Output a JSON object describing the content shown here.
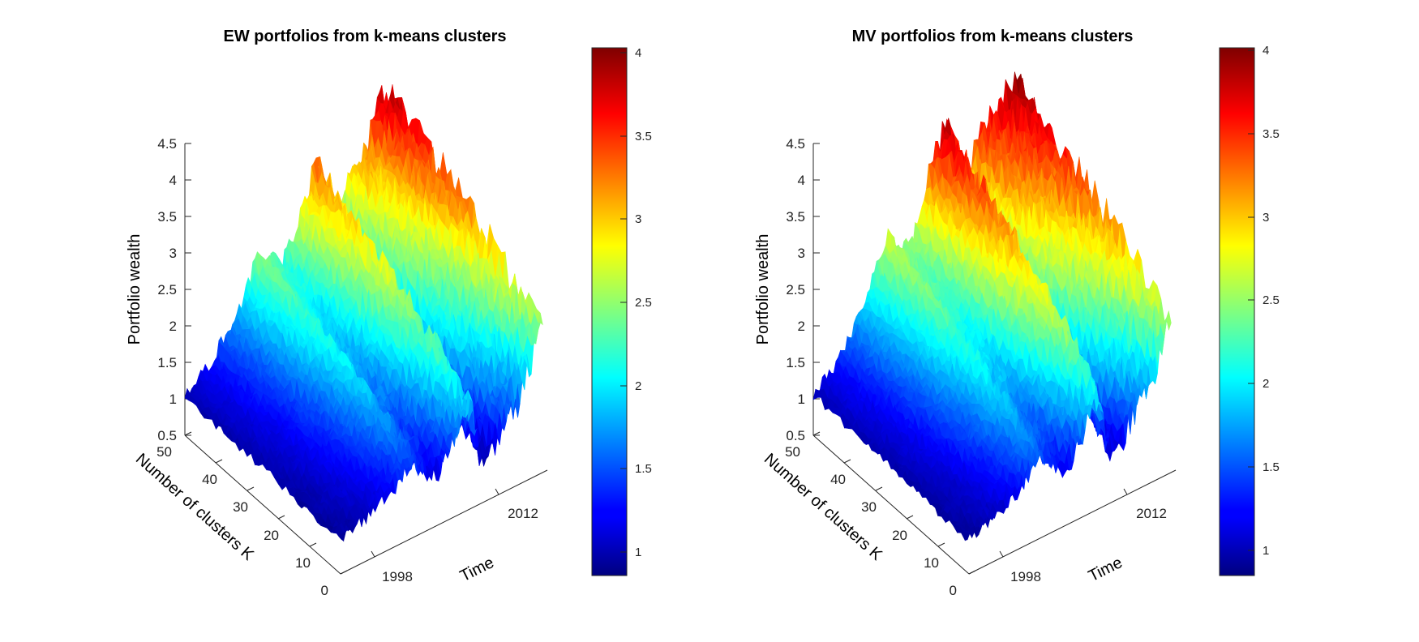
{
  "colors": {
    "colormap": "jet",
    "axis": "#262626",
    "background": "#ffffff"
  },
  "chart_data": [
    {
      "type": "surface",
      "title": "EW portfolios from k-means clusters",
      "xlabel": "Time",
      "ylabel": "Number of clusters K",
      "zlabel": "Portfolio wealth",
      "x_ticks": [
        "1998",
        "2012"
      ],
      "y_ticks": [
        "0",
        "10",
        "20",
        "30",
        "40",
        "50"
      ],
      "z_ticks": [
        "0.5",
        "1",
        "1.5",
        "2",
        "2.5",
        "3",
        "3.5",
        "4",
        "4.5"
      ],
      "xlim": [
        1991,
        2016
      ],
      "ylim": [
        0,
        50
      ],
      "zlim": [
        0.5,
        4.5
      ],
      "clim": [
        0.88,
        4.05
      ],
      "colorbar_ticks": [
        "1",
        "1.5",
        "2",
        "2.5",
        "3",
        "3.5",
        "4"
      ],
      "surface_profile": {
        "x": [
          1991,
          1994,
          1997,
          2000,
          2001,
          2003,
          2005,
          2007,
          2008,
          2009,
          2011,
          2013,
          2015,
          2016
        ],
        "z_max": [
          1.05,
          1.3,
          1.75,
          2.5,
          2.3,
          2.2,
          2.75,
          3.35,
          2.6,
          2.4,
          3.0,
          3.3,
          3.8,
          3.9
        ],
        "z_min": [
          0.95,
          1.05,
          1.2,
          1.5,
          1.3,
          1.15,
          1.45,
          1.9,
          1.1,
          0.95,
          1.3,
          1.6,
          2.2,
          2.4
        ]
      }
    },
    {
      "type": "surface",
      "title": "MV portfolios from k-means clusters",
      "xlabel": "Time",
      "ylabel": "Number of clusters K",
      "zlabel": "Portfolio wealth",
      "x_ticks": [
        "1998",
        "2012"
      ],
      "y_ticks": [
        "0",
        "10",
        "20",
        "30",
        "40",
        "50"
      ],
      "z_ticks": [
        "0.5",
        "1",
        "1.5",
        "2",
        "2.5",
        "3",
        "3.5",
        "4",
        "4.5"
      ],
      "xlim": [
        1991,
        2016
      ],
      "ylim": [
        0,
        50
      ],
      "zlim": [
        0.5,
        4.5
      ],
      "clim": [
        0.88,
        4.05
      ],
      "colorbar_ticks": [
        "1",
        "1.5",
        "2",
        "2.5",
        "3",
        "3.5",
        "4"
      ],
      "surface_profile": {
        "x": [
          1991,
          1994,
          1997,
          2000,
          2001,
          2003,
          2005,
          2007,
          2008,
          2009,
          2011,
          2013,
          2015,
          2016
        ],
        "z_max": [
          1.05,
          1.35,
          1.9,
          2.7,
          2.5,
          2.5,
          3.3,
          3.9,
          3.0,
          2.8,
          3.5,
          3.7,
          3.9,
          4.0
        ],
        "z_min": [
          0.95,
          1.05,
          1.25,
          1.55,
          1.35,
          1.2,
          1.55,
          2.0,
          1.15,
          1.0,
          1.4,
          1.7,
          2.3,
          2.5
        ]
      }
    }
  ]
}
